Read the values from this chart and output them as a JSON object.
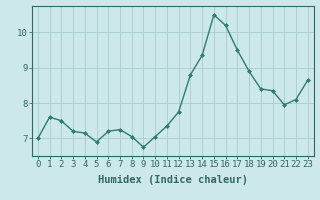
{
  "x": [
    0,
    1,
    2,
    3,
    4,
    5,
    6,
    7,
    8,
    9,
    10,
    11,
    12,
    13,
    14,
    15,
    16,
    17,
    18,
    19,
    20,
    21,
    22,
    23
  ],
  "y": [
    7.0,
    7.6,
    7.5,
    7.2,
    7.15,
    6.9,
    7.2,
    7.25,
    7.05,
    6.75,
    7.05,
    7.35,
    7.75,
    8.8,
    9.35,
    10.5,
    10.2,
    9.5,
    8.9,
    8.4,
    8.35,
    7.95,
    8.1,
    8.65
  ],
  "line_color": "#2e7d6e",
  "marker": "D",
  "marker_size": 2.0,
  "line_width": 1.0,
  "background_color": "#cce8e8",
  "grid_color": "#aacccc",
  "xlabel": "Humidex (Indice chaleur)",
  "xlim": [
    -0.5,
    23.5
  ],
  "ylim": [
    6.5,
    10.75
  ],
  "yticks": [
    7,
    8,
    9,
    10
  ],
  "xticks": [
    0,
    1,
    2,
    3,
    4,
    5,
    6,
    7,
    8,
    9,
    10,
    11,
    12,
    13,
    14,
    15,
    16,
    17,
    18,
    19,
    20,
    21,
    22,
    23
  ],
  "xlabel_fontsize": 7.5,
  "tick_fontsize": 6.5,
  "spine_color": "#336666",
  "tick_color": "#336666",
  "text_color": "#336666"
}
